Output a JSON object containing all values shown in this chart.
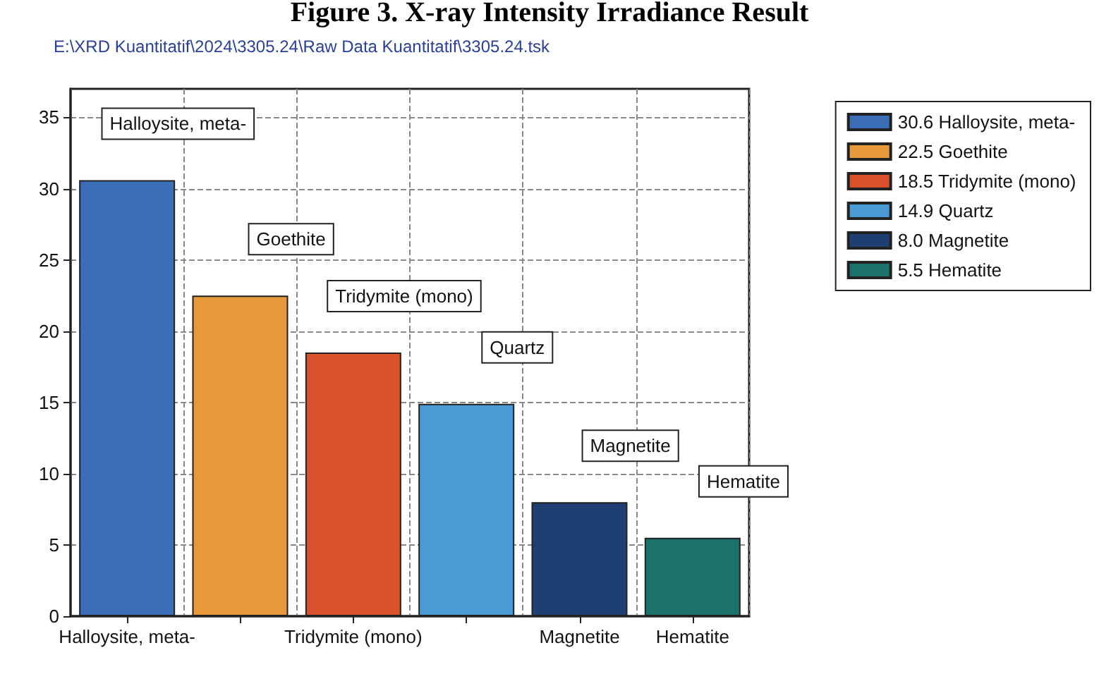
{
  "chart_data": {
    "type": "bar",
    "title": "Figure 3. X-ray Intensity Irradiance Result",
    "subtitle": "E:\\XRD Kuantitatif\\2024\\3305.24\\Raw Data Kuantitatif\\3305.24.tsk",
    "categories": [
      "Halloysite, meta-",
      null,
      "Tridymite (mono)",
      null,
      "Magnetite",
      "Hematite"
    ],
    "series": [
      {
        "name": "30.6 Halloysite, meta-",
        "color": "#3a6fb8",
        "values": [
          30.6,
          null,
          null,
          null,
          null,
          null
        ]
      },
      {
        "name": "22.5 Goethite",
        "color": "#e89a3a",
        "values": [
          null,
          22.5,
          null,
          null,
          null,
          null
        ]
      },
      {
        "name": "18.5 Tridymite (mono)",
        "color": "#d9502a",
        "values": [
          null,
          null,
          18.5,
          null,
          null,
          null
        ]
      },
      {
        "name": "14.9 Quartz",
        "color": "#4a9ad3",
        "values": [
          null,
          null,
          null,
          14.9,
          null,
          null
        ]
      },
      {
        "name": "8.0 Magnetite",
        "color": "#1f3f73",
        "values": [
          null,
          null,
          null,
          null,
          8.0,
          null
        ]
      },
      {
        "name": "5.5 Hematite",
        "color": "#1a726a",
        "values": [
          null,
          null,
          null,
          null,
          null,
          5.5
        ]
      }
    ],
    "annotations": [
      "Halloysite, meta-",
      "Goethite",
      "Tridymite (mono)",
      "Quartz",
      "Magnetite",
      "Hematite"
    ],
    "ylim": [
      0,
      37
    ],
    "yticks": [
      0,
      5,
      10,
      15,
      20,
      25,
      30,
      35
    ],
    "grid": true,
    "legend": "right"
  }
}
